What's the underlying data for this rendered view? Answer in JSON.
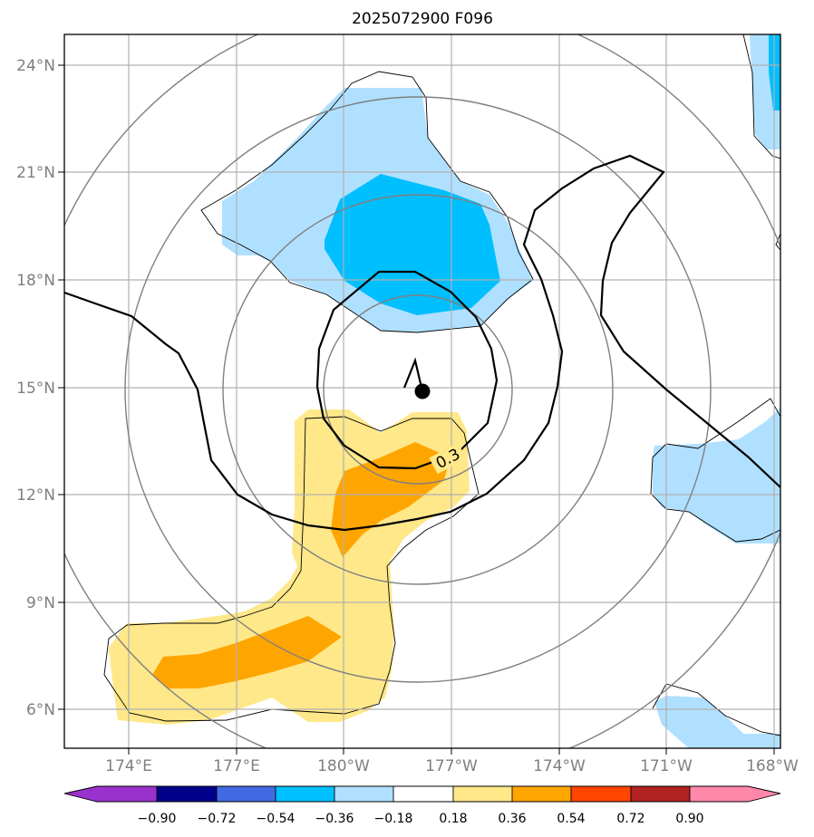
{
  "chart_data": {
    "type": "filled-contour-map",
    "title": "2025072900 F096",
    "x_ticks": [
      "174°E",
      "177°E",
      "180°W",
      "177°W",
      "174°W",
      "171°W",
      "168°W"
    ],
    "y_ticks": [
      "24°N",
      "21°N",
      "18°N",
      "15°N",
      "12°N",
      "9°N",
      "6°N"
    ],
    "colorbar_ticks": [
      "−0.90",
      "−0.72",
      "−0.54",
      "−0.36",
      "−0.18",
      "0.18",
      "0.36",
      "0.54",
      "0.72",
      "0.90"
    ],
    "colorbar_colors": [
      "#9932cc",
      "#00008b",
      "#4169e1",
      "#00bfff",
      "#b0e0ff",
      "#ffffff",
      "#ffe88a",
      "#ffa500",
      "#ff4500",
      "#b22222",
      "#ff88aa"
    ],
    "contour_label": "0.3",
    "center_marker": {
      "lon": -177.8,
      "lat": 14.9
    },
    "grid": true,
    "colors": {
      "grid": "#b0b0b0",
      "range_rings": "#808080",
      "tick_text": "#7f7f7f"
    }
  }
}
